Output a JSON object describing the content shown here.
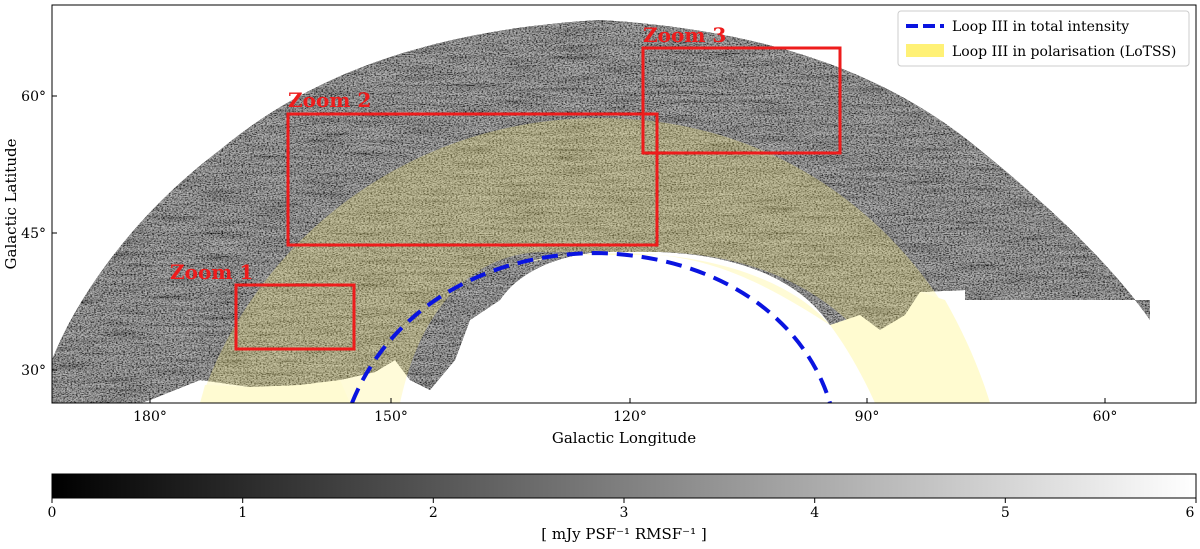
{
  "axes": {
    "xlabel": "Galactic Longitude",
    "ylabel": "Galactic Latitude",
    "x_ticks": [
      "180°",
      "150°",
      "120°",
      "90°",
      "60°"
    ],
    "y_ticks": [
      "60°",
      "45°",
      "30°"
    ]
  },
  "zooms": [
    {
      "label": "Zoom 1"
    },
    {
      "label": "Zoom 2"
    },
    {
      "label": "Zoom 3"
    }
  ],
  "legend": {
    "placement": "top-right",
    "items": [
      {
        "label": "Loop III in total intensity",
        "color": "#0a14e0",
        "style": "dashed-line"
      },
      {
        "label": "Loop III in polarisation (LoTSS)",
        "color": "#fff176",
        "style": "filled-patch"
      }
    ]
  },
  "colorbar": {
    "ticks": [
      "0",
      "1",
      "2",
      "3",
      "4",
      "5",
      "6"
    ],
    "range": [
      0,
      6
    ],
    "label": "[ mJy PSF⁻¹ RMSF⁻¹ ]",
    "colormap": "grayscale"
  },
  "colors": {
    "zoom_box": "#ee1c1c",
    "loop_total_intensity": "#0a14e0",
    "loop_polarisation": "#fff176"
  }
}
